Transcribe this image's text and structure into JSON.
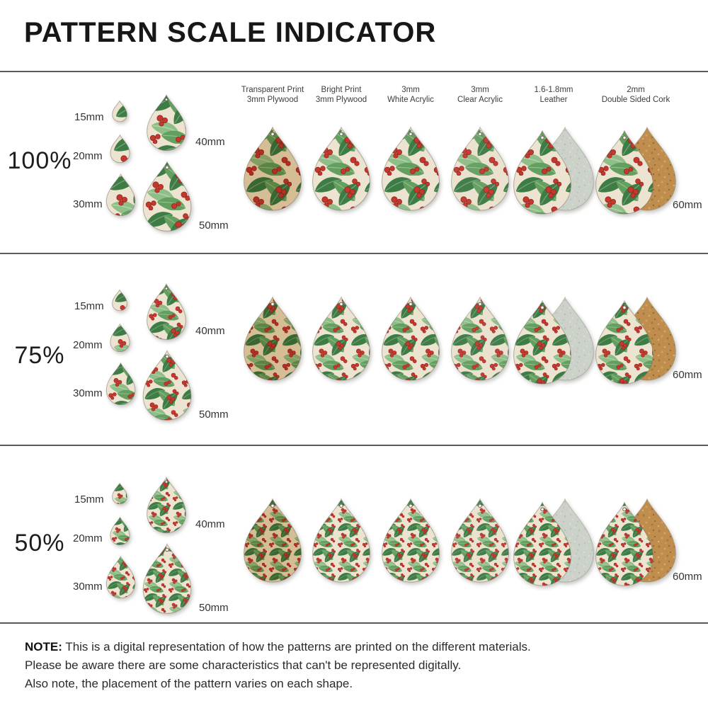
{
  "title": "PATTERN SCALE INDICATOR",
  "material_columns": [
    {
      "line1": "Transparent Print",
      "line2": "3mm Plywood",
      "type": "transparent"
    },
    {
      "line1": "Bright Print",
      "line2": "3mm Plywood",
      "type": "bright"
    },
    {
      "line1": "3mm",
      "line2": "White Acrylic",
      "type": "white"
    },
    {
      "line1": "3mm",
      "line2": "Clear Acrylic",
      "type": "clear"
    },
    {
      "line1": "1.6-1.8mm",
      "line2": "Leather",
      "type": "leather"
    },
    {
      "line1": "2mm",
      "line2": "Double Sided Cork",
      "type": "cork"
    }
  ],
  "rows": [
    {
      "scale_label": "100%",
      "pattern_scale": 1.0,
      "show_headers": true,
      "size_labels": {
        "s15": "15mm",
        "s20": "20mm",
        "s30": "30mm",
        "s40": "40mm",
        "s50": "50mm",
        "s60": "60mm"
      }
    },
    {
      "scale_label": "75%",
      "pattern_scale": 0.75,
      "show_headers": false,
      "size_labels": {
        "s15": "15mm",
        "s20": "20mm",
        "s30": "30mm",
        "s40": "40mm",
        "s50": "50mm",
        "s60": "60mm"
      }
    },
    {
      "scale_label": "50%",
      "pattern_scale": 0.5,
      "show_headers": false,
      "size_labels": {
        "s15": "15mm",
        "s20": "20mm",
        "s30": "30mm",
        "s40": "40mm",
        "s50": "50mm",
        "s60": "60mm"
      }
    }
  ],
  "note": {
    "heading": "NOTE:",
    "line1": "This is a digital representation of how the patterns are printed on the different materials.",
    "line2": "Please be aware there are some characteristics that can't be represented digitally.",
    "line3": "Also note, the placement of the pattern varies on each shape."
  },
  "colors": {
    "cream": "#ece4d0",
    "green_dark": "#3e7c45",
    "green_mid": "#63a05f",
    "green_light": "#8fbe88",
    "berry_red": "#c5382d",
    "berry_edge": "#962520",
    "plywood_tint": "#c9a05e",
    "leather_suede": "#ccd2c9",
    "cork": "#bf8e4f",
    "divider": "#5a5a5a",
    "text": "#2b2b2b"
  }
}
